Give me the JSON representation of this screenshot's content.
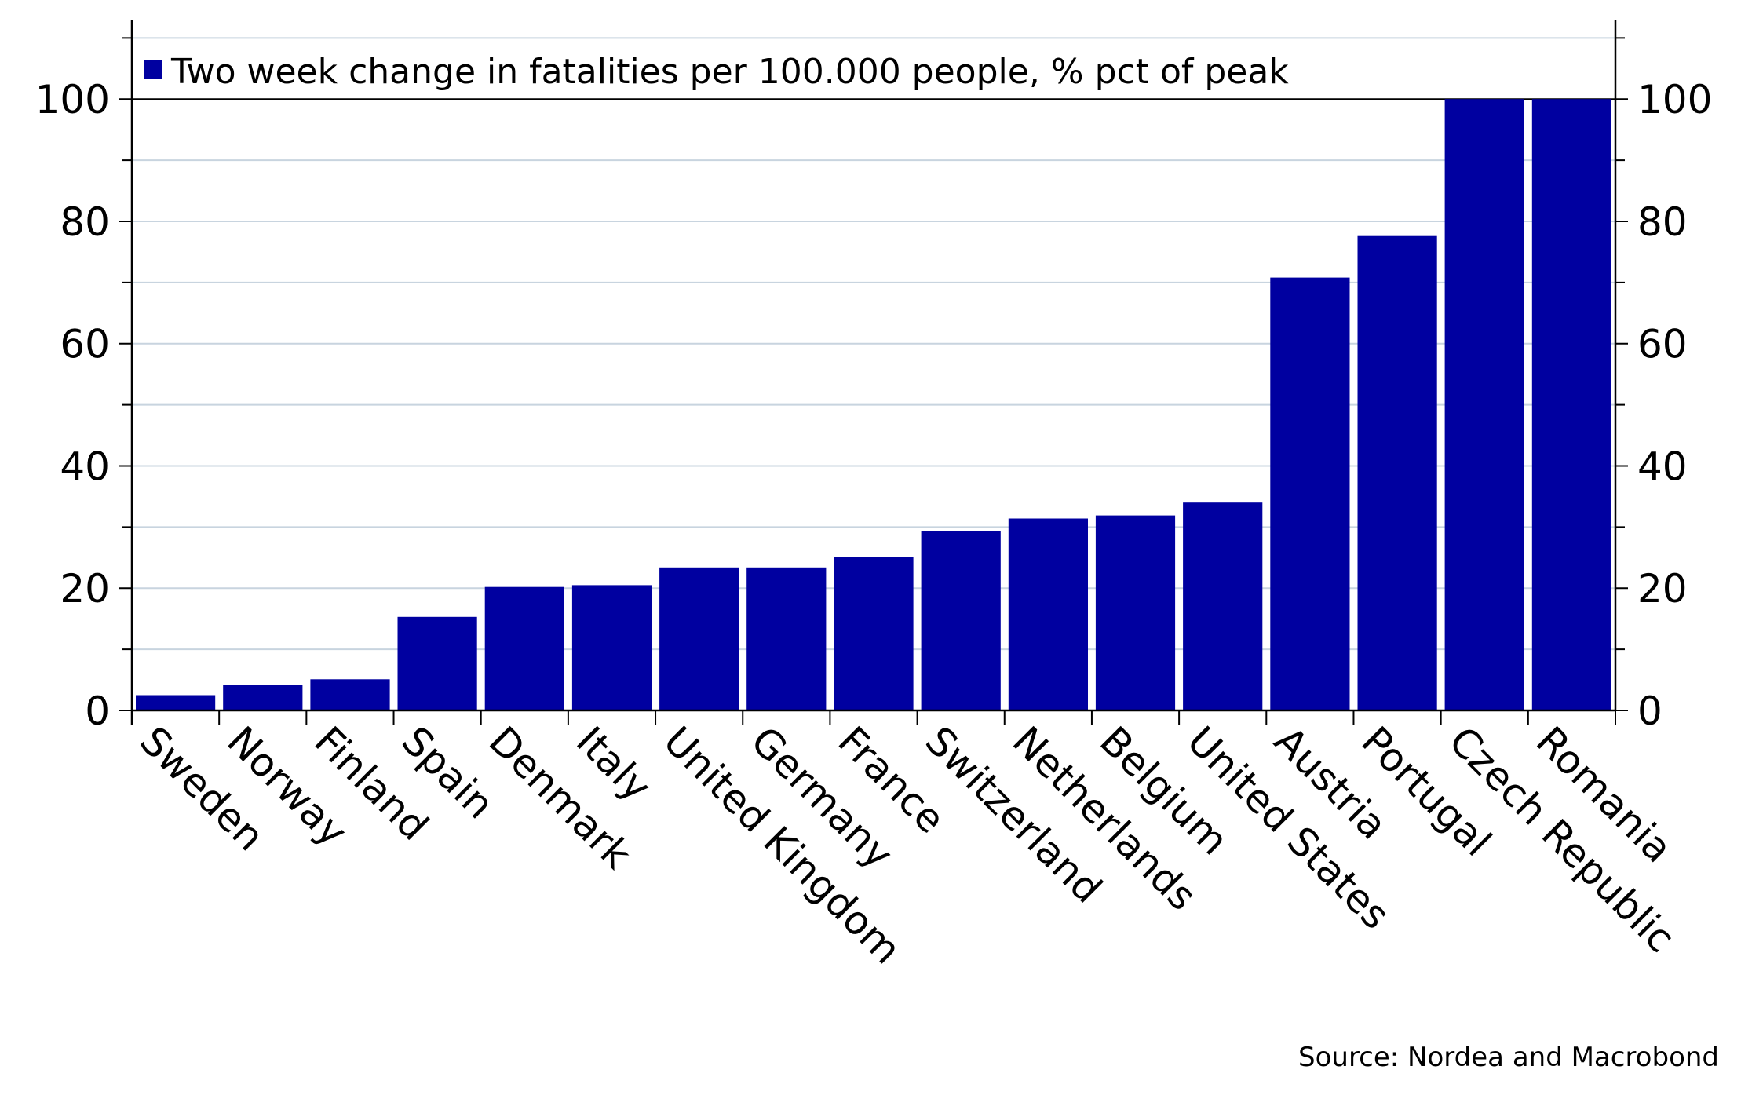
{
  "chart_data": {
    "type": "bar",
    "categories": [
      "Sweden",
      "Norway",
      "Finland",
      "Spain",
      "Denmark",
      "Italy",
      "United Kingdom",
      "Germany",
      "France",
      "Switzerland",
      "Netherlands",
      "Belgium",
      "United States",
      "Austria",
      "Portugal",
      "Czech Republic",
      "Romania"
    ],
    "series": [
      {
        "name": "Two week change in fatalities per 100.000 people, % pct of peak",
        "values": [
          2.5,
          4.2,
          5.1,
          15.3,
          20.2,
          20.5,
          23.4,
          23.4,
          25.1,
          29.3,
          31.4,
          31.9,
          34.0,
          70.8,
          77.6,
          100,
          100
        ],
        "color": "#0000a0"
      }
    ],
    "ylim": [
      0,
      113
    ],
    "yticks": [
      0,
      20,
      40,
      60,
      80,
      100
    ],
    "ytick_labels": [
      "0",
      "20",
      "40",
      "60",
      "80",
      "100"
    ],
    "legend_position": "top-left",
    "grid": true,
    "grid_color": "#c8d4df",
    "source": "Source: Nordea and Macrobond"
  }
}
